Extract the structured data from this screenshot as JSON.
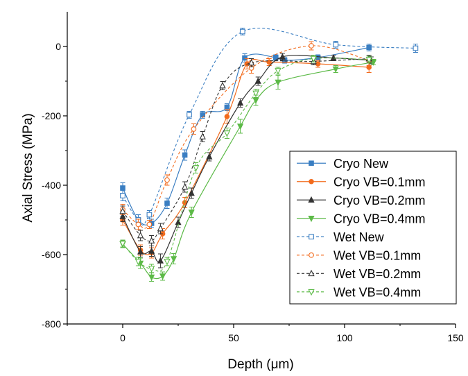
{
  "chart_data": {
    "type": "line",
    "title": "",
    "xlabel": "Depth (μm)",
    "ylabel": "Axial Stress (MPa)",
    "xlim": [
      -25,
      150
    ],
    "ylim": [
      -800,
      100
    ],
    "xticks": [
      0,
      50,
      100,
      150
    ],
    "xtick_labels": [
      "0",
      "50",
      "100",
      "150"
    ],
    "yticks": [
      -800,
      -600,
      -400,
      -200,
      0
    ],
    "ytick_labels": [
      "-800",
      "-600",
      "-400",
      "-200",
      "0"
    ],
    "grid": false,
    "legend_position": "bottom-right",
    "series": [
      {
        "name": "Cryo New",
        "color": "#3a7ec2",
        "marker": "square",
        "filled": true,
        "dashed": false,
        "x": [
          0,
          7,
          13,
          20,
          28,
          36,
          47,
          55,
          69,
          73,
          88,
          111
        ],
        "y": [
          -408,
          -500,
          -510,
          -452,
          -313,
          -197,
          -175,
          -33,
          -32,
          -40,
          -32,
          -3
        ],
        "err": [
          15,
          15,
          12,
          15,
          15,
          10,
          10,
          12,
          8,
          8,
          8,
          10
        ]
      },
      {
        "name": "Cryo VB=0.1mm",
        "color": "#f26b1d",
        "marker": "circle",
        "filled": true,
        "dashed": false,
        "x": [
          0,
          8,
          13,
          18,
          28,
          47,
          56,
          66,
          88,
          111
        ],
        "y": [
          -500,
          -587,
          -595,
          -540,
          -450,
          -202,
          -50,
          -45,
          -50,
          -60
        ],
        "err": [
          15,
          15,
          15,
          15,
          15,
          20,
          15,
          10,
          10,
          15
        ]
      },
      {
        "name": "Cryo VB=0.2mm",
        "color": "#333333",
        "marker": "triangle-up",
        "filled": true,
        "dashed": false,
        "x": [
          0,
          8,
          13,
          17,
          25,
          31,
          39,
          53,
          61,
          72,
          95,
          112
        ],
        "y": [
          -490,
          -592,
          -590,
          -618,
          -507,
          -423,
          -318,
          -163,
          -100,
          -30,
          -33,
          -40
        ],
        "err": [
          15,
          15,
          15,
          20,
          15,
          15,
          12,
          12,
          12,
          10,
          8,
          10
        ]
      },
      {
        "name": "Cryo VB=0.4mm",
        "color": "#5cba47",
        "marker": "triangle-down",
        "filled": true,
        "dashed": false,
        "x": [
          0,
          8,
          13,
          18,
          23,
          31,
          53,
          60,
          70,
          96,
          113
        ],
        "y": [
          -570,
          -625,
          -665,
          -662,
          -612,
          -478,
          -230,
          -155,
          -103,
          -65,
          -45
        ],
        "err": [
          10,
          15,
          12,
          12,
          15,
          15,
          20,
          15,
          20,
          10,
          8
        ]
      },
      {
        "name": "Wet New",
        "color": "#3a7ec2",
        "marker": "square",
        "filled": false,
        "dashed": true,
        "x": [
          0,
          7,
          12,
          30,
          54,
          96,
          132
        ],
        "y": [
          -430,
          -500,
          -485,
          -197,
          43,
          5,
          -5
        ],
        "err": [
          15,
          15,
          12,
          10,
          10,
          10,
          12
        ]
      },
      {
        "name": "Wet VB=0.1mm",
        "color": "#f26b1d",
        "marker": "circle",
        "filled": false,
        "dashed": true,
        "x": [
          0,
          7,
          12,
          20,
          32,
          58,
          85,
          111
        ],
        "y": [
          -470,
          -513,
          -513,
          -385,
          -238,
          -62,
          2,
          -40
        ],
        "err": [
          15,
          15,
          12,
          15,
          15,
          15,
          12,
          15
        ]
      },
      {
        "name": "Wet VB=0.2mm",
        "color": "#333333",
        "marker": "triangle-up",
        "filled": false,
        "dashed": true,
        "x": [
          0,
          8,
          13,
          17,
          28,
          36,
          45,
          58,
          86,
          111
        ],
        "y": [
          -475,
          -545,
          -560,
          -525,
          -405,
          -260,
          -113,
          -47,
          -43,
          -35
        ],
        "err": [
          15,
          15,
          15,
          15,
          15,
          15,
          12,
          12,
          10,
          10
        ]
      },
      {
        "name": "Wet VB=0.4mm",
        "color": "#5cba47",
        "marker": "triangle-down",
        "filled": false,
        "dashed": true,
        "x": [
          0,
          7,
          13,
          20,
          33,
          47,
          60,
          70,
          86,
          111
        ],
        "y": [
          -568,
          -620,
          -640,
          -620,
          -350,
          -250,
          -135,
          -70,
          -35,
          -38
        ],
        "err": [
          10,
          12,
          12,
          12,
          15,
          15,
          12,
          10,
          10,
          10
        ]
      }
    ]
  }
}
